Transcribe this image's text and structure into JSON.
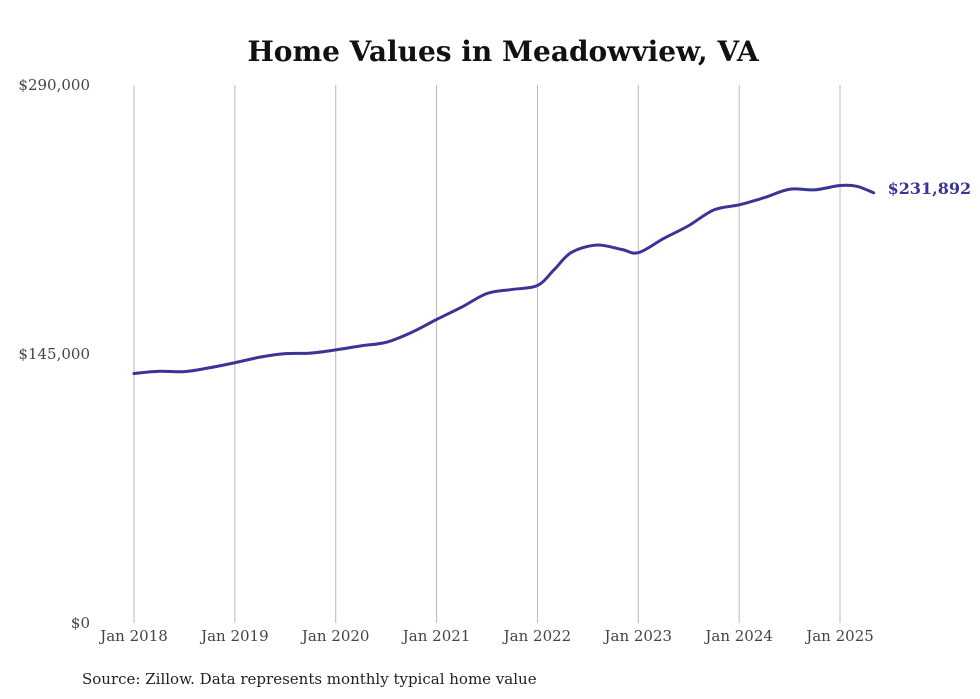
{
  "chart_data": {
    "type": "line",
    "title": "Home Values in Meadowview, VA",
    "xlabel": "",
    "ylabel": "",
    "ylim": [
      0,
      290000
    ],
    "y_ticks": [
      0,
      145000,
      290000
    ],
    "y_tick_labels": [
      "$0",
      "$145,000",
      "$290,000"
    ],
    "x_ticks": [
      "2018-01",
      "2019-01",
      "2020-01",
      "2021-01",
      "2022-01",
      "2023-01",
      "2024-01",
      "2025-01"
    ],
    "x_tick_labels": [
      "Jan 2018",
      "Jan 2019",
      "Jan 2020",
      "Jan 2021",
      "Jan 2022",
      "Jan 2023",
      "Jan 2024",
      "Jan 2025"
    ],
    "grid": "vertical",
    "series": [
      {
        "color": "#3b3497",
        "end_label": "$231,892",
        "points": [
          [
            "2018-01",
            134500
          ],
          [
            "2018-04",
            135700
          ],
          [
            "2018-07",
            135500
          ],
          [
            "2018-10",
            137600
          ],
          [
            "2019-01",
            140300
          ],
          [
            "2019-04",
            143300
          ],
          [
            "2019-07",
            145200
          ],
          [
            "2019-10",
            145500
          ],
          [
            "2020-01",
            147200
          ],
          [
            "2020-04",
            149400
          ],
          [
            "2020-07",
            151300
          ],
          [
            "2020-10",
            156600
          ],
          [
            "2021-01",
            163600
          ],
          [
            "2021-04",
            170300
          ],
          [
            "2021-07",
            177600
          ],
          [
            "2021-10",
            179800
          ],
          [
            "2022-01",
            181900
          ],
          [
            "2022-03",
            190500
          ],
          [
            "2022-05",
            199600
          ],
          [
            "2022-08",
            203700
          ],
          [
            "2022-11",
            201400
          ],
          [
            "2023-01",
            199600
          ],
          [
            "2023-04",
            207200
          ],
          [
            "2023-07",
            214200
          ],
          [
            "2023-10",
            222700
          ],
          [
            "2024-01",
            225400
          ],
          [
            "2024-04",
            229300
          ],
          [
            "2024-07",
            233800
          ],
          [
            "2024-10",
            233500
          ],
          [
            "2025-01",
            235800
          ],
          [
            "2025-03",
            235400
          ],
          [
            "2025-05",
            231892
          ]
        ]
      }
    ]
  },
  "footer": {
    "source": "Source: Zillow. Data represents monthly typical home value"
  }
}
